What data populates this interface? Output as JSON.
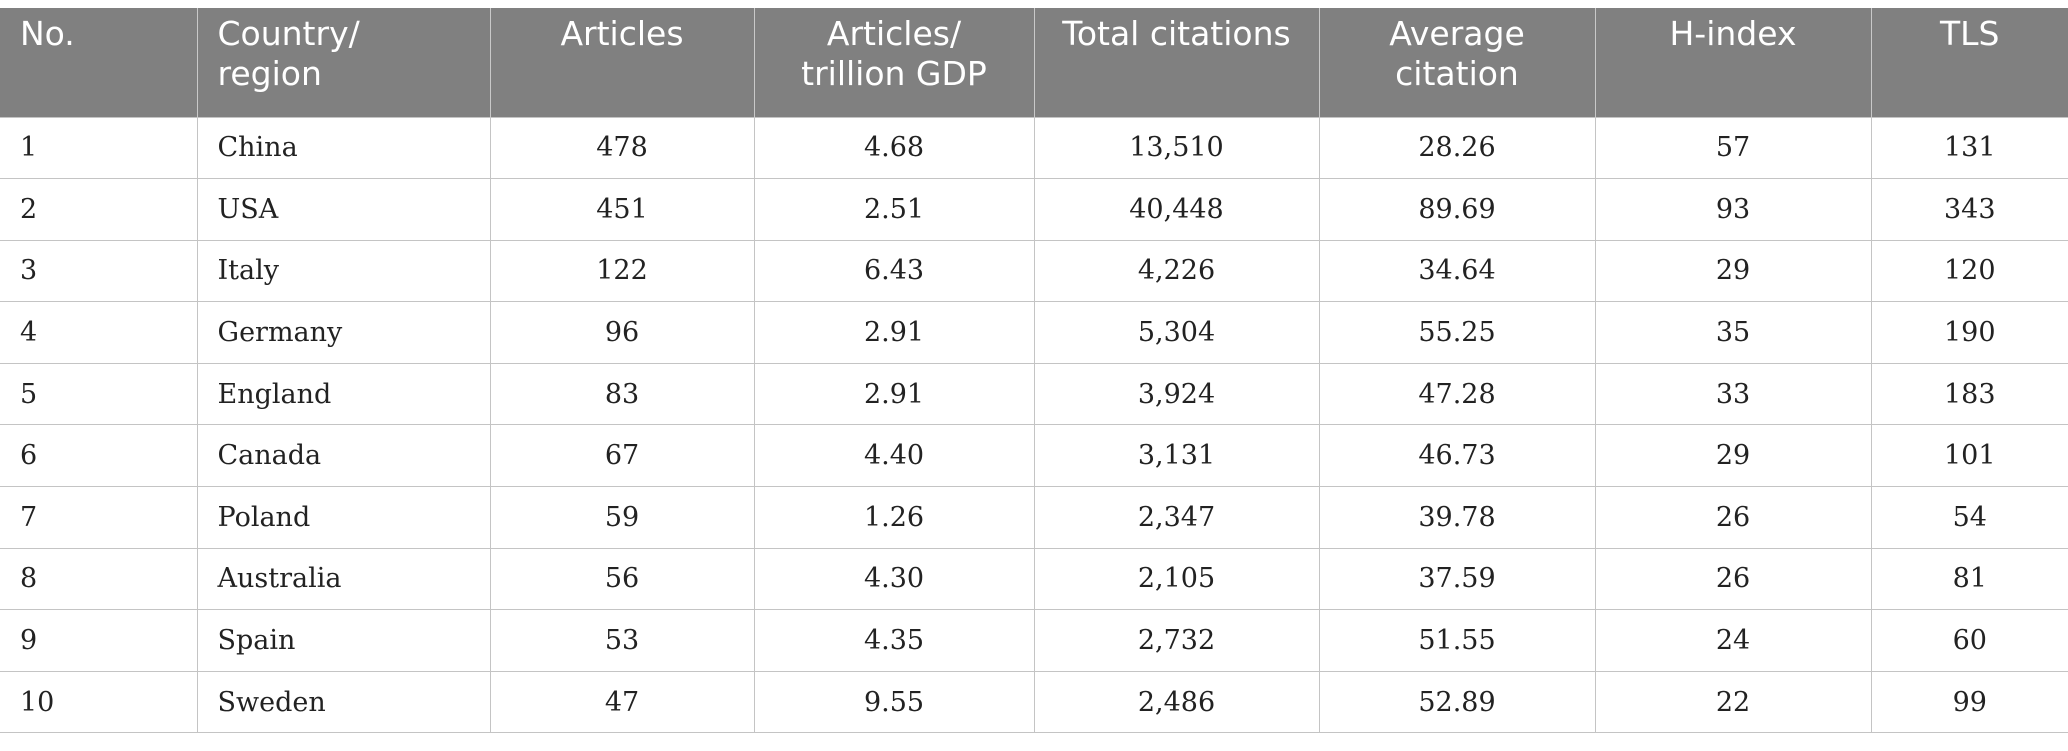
{
  "table": {
    "columns": [
      "No.",
      "Country/\nregion",
      "Articles",
      "Articles/\ntrillion GDP",
      "Total citations",
      "Average\ncitation",
      "H-index",
      "TLS"
    ],
    "rows": [
      [
        "1",
        "China",
        "478",
        "4.68",
        "13,510",
        "28.26",
        "57",
        "131"
      ],
      [
        "2",
        "USA",
        "451",
        "2.51",
        "40,448",
        "89.69",
        "93",
        "343"
      ],
      [
        "3",
        "Italy",
        "122",
        "6.43",
        "4,226",
        "34.64",
        "29",
        "120"
      ],
      [
        "4",
        "Germany",
        "96",
        "2.91",
        "5,304",
        "55.25",
        "35",
        "190"
      ],
      [
        "5",
        "England",
        "83",
        "2.91",
        "3,924",
        "47.28",
        "33",
        "183"
      ],
      [
        "6",
        "Canada",
        "67",
        "4.40",
        "3,131",
        "46.73",
        "29",
        "101"
      ],
      [
        "7",
        "Poland",
        "59",
        "1.26",
        "2,347",
        "39.78",
        "26",
        "54"
      ],
      [
        "8",
        "Australia",
        "56",
        "4.30",
        "2,105",
        "37.59",
        "26",
        "81"
      ],
      [
        "9",
        "Spain",
        "53",
        "4.35",
        "2,732",
        "51.55",
        "24",
        "60"
      ],
      [
        "10",
        "Sweden",
        "47",
        "9.55",
        "2,486",
        "52.89",
        "22",
        "99"
      ]
    ]
  },
  "colors": {
    "header_bg": "#808080",
    "header_text": "#ffffff",
    "grid_line": "#c4c4c4"
  }
}
